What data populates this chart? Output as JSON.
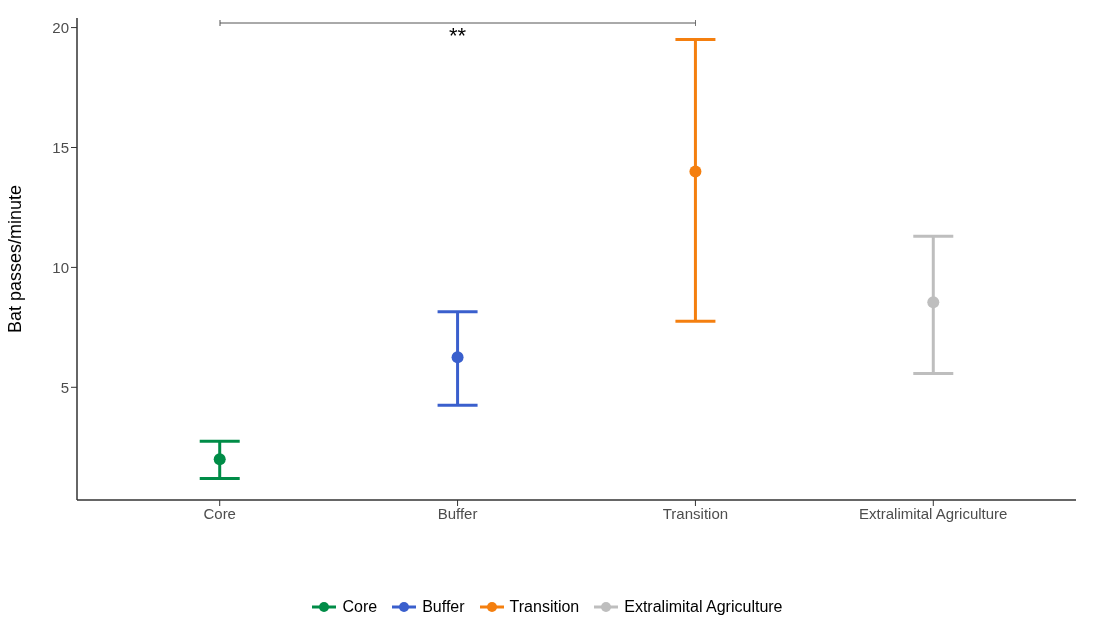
{
  "chart_data": {
    "type": "scatter",
    "ylabel": "Bat passes/minute",
    "categories": [
      "Core",
      "Buffer",
      "Transition",
      "Extralimital Agriculture"
    ],
    "series": [
      {
        "name": "Core",
        "color": "#008c47",
        "values": [
          2.0,
          null,
          null,
          null
        ],
        "errors": [
          [
            1.2,
            2.75
          ],
          null,
          null,
          null
        ]
      },
      {
        "name": "Buffer",
        "color": "#3a5fcd",
        "values": [
          null,
          6.25,
          null,
          null
        ],
        "errors": [
          null,
          [
            4.25,
            8.15
          ],
          null,
          null
        ]
      },
      {
        "name": "Transition",
        "color": "#f47f0f",
        "values": [
          null,
          null,
          14.0,
          null
        ],
        "errors": [
          null,
          null,
          [
            7.75,
            19.5
          ],
          null
        ]
      },
      {
        "name": "Extralimital Agriculture",
        "color": "#bebebe",
        "values": [
          null,
          null,
          null,
          8.55
        ],
        "errors": [
          null,
          null,
          null,
          [
            5.58,
            11.3
          ]
        ]
      }
    ],
    "ylim": [
      0.3,
      20.4
    ],
    "yticks": [
      5,
      10,
      15,
      20
    ],
    "legend": "bottom",
    "marker": "circle",
    "annotations": [
      "**"
    ]
  }
}
